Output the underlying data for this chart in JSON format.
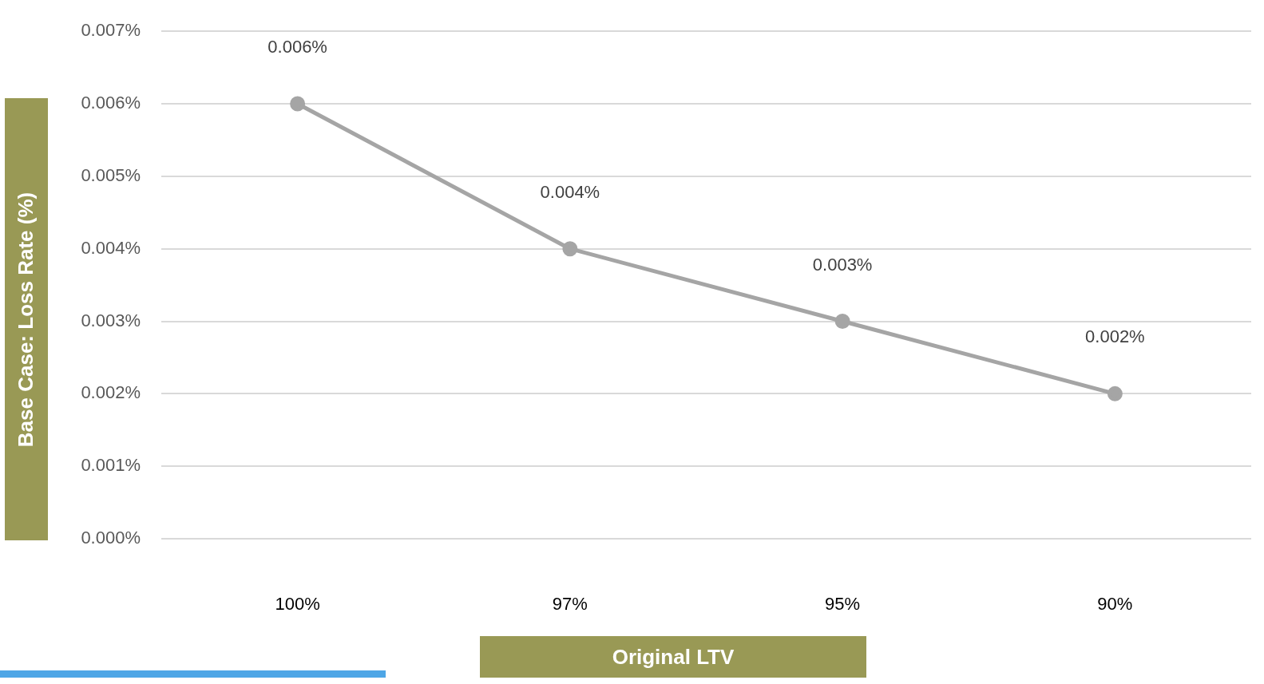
{
  "chart_data": {
    "type": "line",
    "xlabel": "Original LTV",
    "ylabel": "Base Case: Loss Rate (%)",
    "categories": [
      "100%",
      "97%",
      "95%",
      "90%"
    ],
    "series": [
      {
        "color": "#a5a5a5",
        "values": [
          0.006,
          0.004,
          0.003,
          0.002
        ],
        "value_labels": [
          "0.006%",
          "0.004%",
          "0.003%",
          "0.002%"
        ]
      }
    ],
    "ylim": [
      0,
      0.007
    ],
    "yticks": [
      {
        "value": 0,
        "label": "0.000%"
      },
      {
        "value": 0.001,
        "label": "0.001%"
      },
      {
        "value": 0.002,
        "label": "0.002%"
      },
      {
        "value": 0.003,
        "label": "0.003%"
      },
      {
        "value": 0.004,
        "label": "0.004%"
      },
      {
        "value": 0.005,
        "label": "0.005%"
      },
      {
        "value": 0.006,
        "label": "0.006%"
      },
      {
        "value": 0.007,
        "label": "0.007%"
      }
    ],
    "grid": "y",
    "legend": false,
    "marker": "circle",
    "line_style": "solid"
  }
}
